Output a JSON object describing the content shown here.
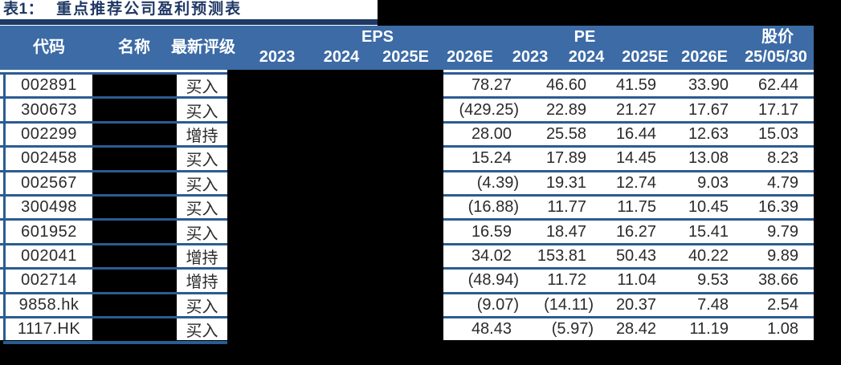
{
  "title": {
    "tag": "表1：",
    "text": "重点推荐公司盈利预测表"
  },
  "header": {
    "code": "代码",
    "name": "名称",
    "rating": "最新评级",
    "eps_group": "EPS",
    "pe_group": "PE",
    "price_group": "股价",
    "eps_years": [
      "2023",
      "2024",
      "2025E",
      "2026E"
    ],
    "pe_years": [
      "2023",
      "2024",
      "2025E",
      "2026E"
    ],
    "price_date": "25/05/30"
  },
  "rows": [
    {
      "code": "002891",
      "rating": "买入",
      "pe": [
        "78.27",
        "46.60",
        "41.59",
        "33.90"
      ],
      "price": "62.44"
    },
    {
      "code": "300673",
      "rating": "买入",
      "pe": [
        "(429.25)",
        "22.89",
        "21.27",
        "17.67"
      ],
      "price": "17.17"
    },
    {
      "code": "002299",
      "rating": "增持",
      "pe": [
        "28.00",
        "25.58",
        "16.44",
        "12.63"
      ],
      "price": "15.03"
    },
    {
      "code": "002458",
      "rating": "买入",
      "pe": [
        "15.24",
        "17.89",
        "14.45",
        "13.08"
      ],
      "price": "8.23"
    },
    {
      "code": "002567",
      "rating": "买入",
      "pe": [
        "(4.39)",
        "19.31",
        "12.74",
        "9.03"
      ],
      "price": "4.79"
    },
    {
      "code": "300498",
      "rating": "买入",
      "pe": [
        "(16.88)",
        "11.77",
        "11.75",
        "10.45"
      ],
      "price": "16.39"
    },
    {
      "code": "601952",
      "rating": "买入",
      "pe": [
        "16.59",
        "18.47",
        "16.27",
        "15.41"
      ],
      "price": "9.79"
    },
    {
      "code": "002041",
      "rating": "增持",
      "pe": [
        "34.02",
        "153.81",
        "50.43",
        "40.22"
      ],
      "price": "9.89"
    },
    {
      "code": "002714",
      "rating": "增持",
      "pe": [
        "(48.94)",
        "11.72",
        "11.04",
        "9.53"
      ],
      "price": "38.66"
    },
    {
      "code": "9858.hk",
      "rating": "买入",
      "pe": [
        "(9.07)",
        "(14.11)",
        "20.37",
        "7.48"
      ],
      "price": "2.54"
    },
    {
      "code": "1117.HK",
      "rating": "买入",
      "pe": [
        "48.43",
        "(5.97)",
        "28.42",
        "11.19"
      ],
      "price": "1.08"
    }
  ],
  "colors": {
    "header_bg": "#3c6ba6",
    "title_navy": "#1f3864",
    "row_border": "#2b5c92",
    "data_text": "#2b2b2b",
    "redaction": "#000000"
  }
}
